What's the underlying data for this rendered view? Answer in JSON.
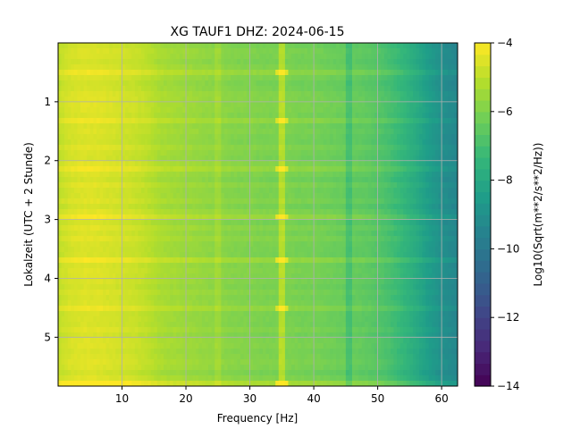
{
  "chart_data": {
    "type": "heatmap",
    "title": "XG TAUF1  DHZ: 2024-06-15",
    "xlabel": "Frequency [Hz]",
    "ylabel": "Lokalzeit (UTC + 2 Stunde)",
    "colorbar_label": "Log10(Sqrt(m**2/s**2/Hz))",
    "colormap": "viridis",
    "grid": true,
    "y_inverted": true,
    "xlim": [
      0,
      62.5
    ],
    "ylim": [
      5.83,
      0
    ],
    "clim": [
      -14,
      -4
    ],
    "x_ticks": [
      10,
      20,
      30,
      40,
      50,
      60
    ],
    "y_ticks": [
      1,
      2,
      3,
      4,
      5
    ],
    "colorbar_ticks": [
      -14,
      -12,
      -10,
      -8,
      -6,
      -4
    ],
    "frequency_profile": {
      "x": [
        0,
        2,
        4,
        6,
        8,
        10,
        12,
        14,
        16,
        18,
        20,
        22,
        24,
        26,
        28,
        30,
        32,
        34,
        36,
        38,
        40,
        42,
        44,
        46,
        48,
        50,
        52,
        54,
        56,
        58,
        60,
        62.5
      ],
      "values": [
        -4.9,
        -4.6,
        -4.5,
        -4.5,
        -4.6,
        -4.7,
        -4.8,
        -5.0,
        -5.3,
        -5.4,
        -5.5,
        -5.6,
        -5.7,
        -5.8,
        -5.9,
        -5.9,
        -6.0,
        -6.0,
        -6.0,
        -6.1,
        -6.1,
        -6.2,
        -6.3,
        -6.4,
        -6.5,
        -6.7,
        -7.0,
        -7.4,
        -7.9,
        -8.5,
        -9.0,
        -9.4
      ]
    },
    "narrowband_lines": [
      {
        "x": 35,
        "delta": 0.9
      },
      {
        "x": 45.5,
        "delta": -0.6
      },
      {
        "x": 25,
        "delta": 0.3
      }
    ],
    "transient_rows": [
      {
        "y": 0.5,
        "delta": 0.3
      },
      {
        "y": 1.35,
        "delta": 0.35
      },
      {
        "y": 2.15,
        "delta": 0.35
      },
      {
        "y": 2.95,
        "delta": 0.45
      },
      {
        "y": 3.7,
        "delta": 0.35
      },
      {
        "y": 4.5,
        "delta": 0.4
      },
      {
        "y": 5.75,
        "delta": 0.8
      }
    ]
  }
}
